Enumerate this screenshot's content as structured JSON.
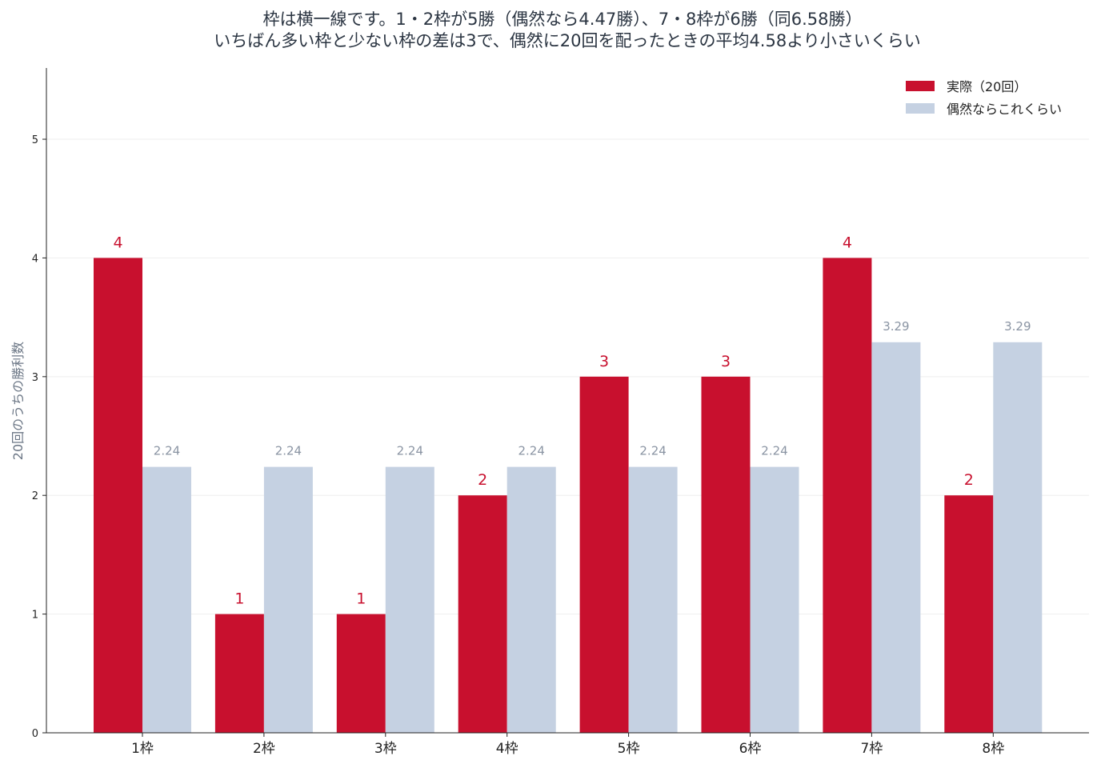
{
  "chart_data": {
    "type": "bar",
    "title_lines": [
      "枠は横一線です。1・2枠が5勝（偶然なら4.47勝）、7・8枠が6勝（同6.58勝）",
      "いちばん多い枠と少ない枠の差は3で、偶然に20回を配ったときの平均4.58より小さいくらい"
    ],
    "ylabel": "20回のうちの勝利数",
    "xlabel": "",
    "categories": [
      "1枠",
      "2枠",
      "3枠",
      "4枠",
      "5枠",
      "6枠",
      "7枠",
      "8枠"
    ],
    "series": [
      {
        "name": "実際（20回）",
        "color": "#c8102e",
        "values": [
          4,
          1,
          1,
          2,
          3,
          3,
          4,
          2
        ],
        "labels": [
          "4",
          "1",
          "1",
          "2",
          "3",
          "3",
          "4",
          "2"
        ]
      },
      {
        "name": "偶然ならこれくらい",
        "color": "#c5d1e2",
        "values": [
          2.24,
          2.24,
          2.24,
          2.24,
          2.24,
          2.24,
          3.29,
          3.29
        ],
        "labels": [
          "2.24",
          "2.24",
          "2.24",
          "2.24",
          "2.24",
          "2.24",
          "3.29",
          "3.29"
        ]
      }
    ],
    "ylim": [
      0,
      5.6
    ],
    "yticks": [
      0,
      1,
      2,
      3,
      4,
      5
    ],
    "grid": true,
    "legend_position": "top-right"
  }
}
